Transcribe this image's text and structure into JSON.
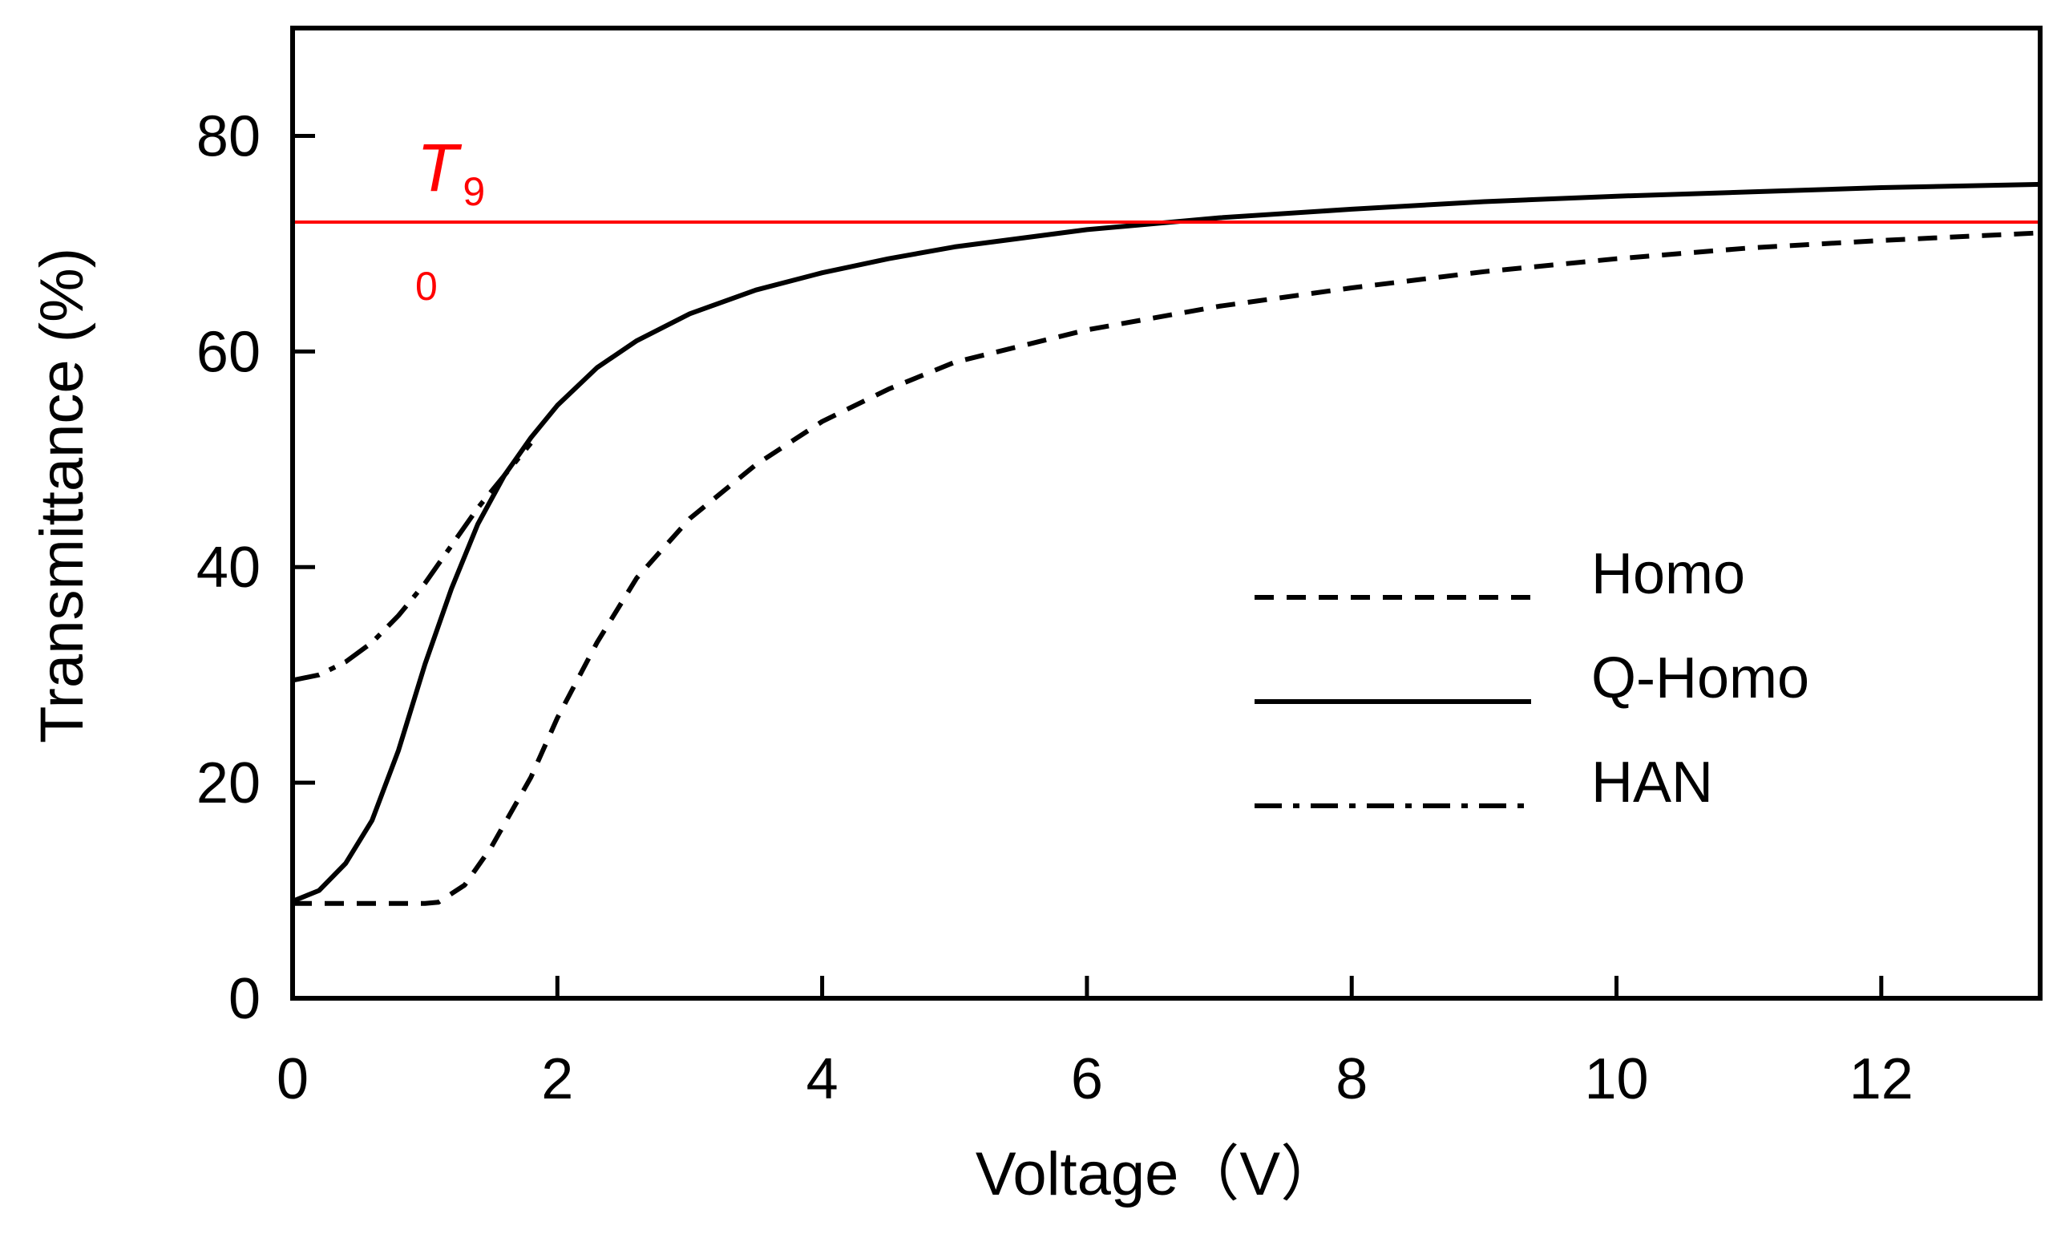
{
  "chart_data": {
    "type": "line",
    "xlabel": "Voltage（V）",
    "ylabel": "Transmittance (%)",
    "xlim": [
      0,
      13.2
    ],
    "ylim": [
      0,
      90
    ],
    "xticks": [
      "0",
      "2",
      "4",
      "6",
      "8",
      "10",
      "12"
    ],
    "yticks": [
      "0",
      "20",
      "40",
      "60",
      "80"
    ],
    "grid": false,
    "legend_position": "lower-right",
    "reference_line": {
      "y": 72,
      "color": "#ff0000",
      "label": "T",
      "label_sub": "9",
      "label_extra": "0"
    },
    "series": [
      {
        "name": "Homo",
        "style": "dashed",
        "x": [
          0,
          0.5,
          1.0,
          1.1,
          1.3,
          1.5,
          1.8,
          2.0,
          2.3,
          2.6,
          3.0,
          3.5,
          4.0,
          4.5,
          5.0,
          6.0,
          7.0,
          8.0,
          9.0,
          10.0,
          11.0,
          12.0,
          13.2
        ],
        "y": [
          8.8,
          8.8,
          8.8,
          8.9,
          10.5,
          14,
          20.5,
          26,
          33,
          39,
          44.5,
          49.5,
          53.5,
          56.5,
          59,
          62,
          64.2,
          65.9,
          67.4,
          68.6,
          69.6,
          70.3,
          71
        ]
      },
      {
        "name": "Q-Homo",
        "style": "solid",
        "x": [
          0,
          0.2,
          0.4,
          0.6,
          0.8,
          1.0,
          1.2,
          1.4,
          1.6,
          1.8,
          2.0,
          2.3,
          2.6,
          3.0,
          3.5,
          4.0,
          4.5,
          5.0,
          6.0,
          7.0,
          8.0,
          9.0,
          10.0,
          11.0,
          12.0,
          13.2
        ],
        "y": [
          9,
          10,
          12.5,
          16.5,
          23,
          31,
          38,
          44,
          48.5,
          52,
          55,
          58.5,
          61,
          63.5,
          65.7,
          67.3,
          68.6,
          69.7,
          71.3,
          72.4,
          73.2,
          73.9,
          74.4,
          74.8,
          75.2,
          75.5
        ]
      },
      {
        "name": "HAN",
        "style": "dash-dot",
        "x": [
          0,
          0.2,
          0.4,
          0.6,
          0.8,
          1.0,
          1.2,
          1.4,
          1.6,
          1.8
        ],
        "y": [
          29.5,
          30,
          31.2,
          33,
          35.5,
          38.5,
          42,
          45.5,
          48.5,
          51.5
        ]
      }
    ]
  }
}
